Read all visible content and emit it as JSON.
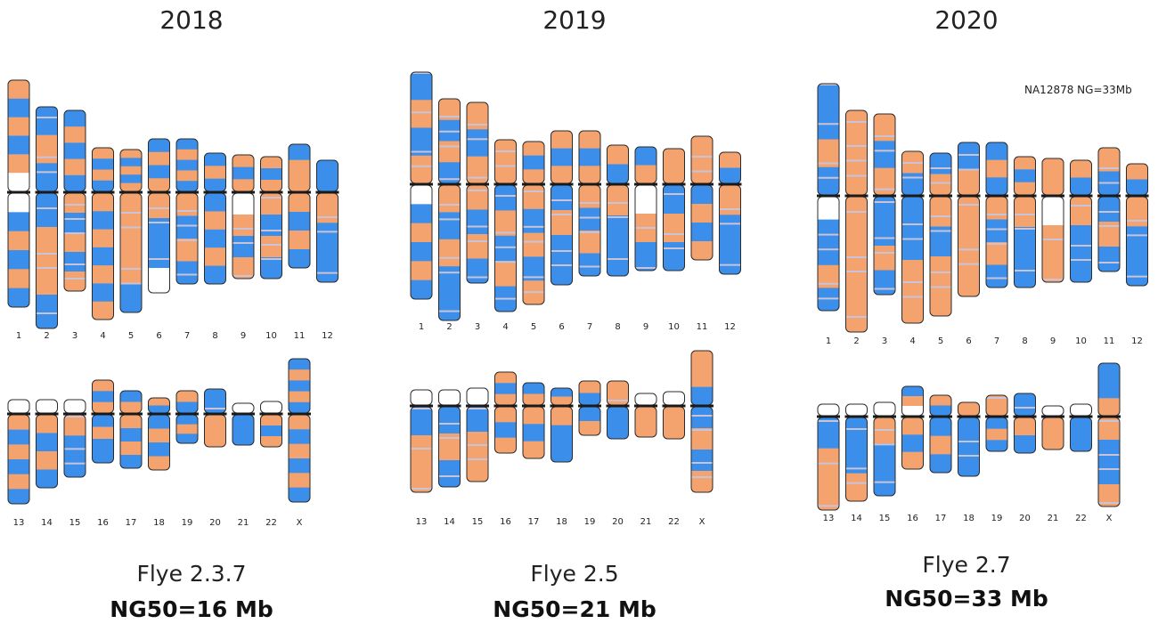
{
  "colors": {
    "orange": "#F5A36E",
    "blue": "#3B8EEA",
    "stripe": "#C9C3D8",
    "outline": "#2b2b2b",
    "centromere": "#1a1a1a"
  },
  "panels": [
    {
      "year": "2018",
      "assembler": "Flye 2.3.7",
      "ng50": "NG50=16 Mb",
      "note": "",
      "chromosomes": [
        {
          "label": "1",
          "p": [
            "O",
            "B",
            "O",
            "B",
            "O",
            "W"
          ],
          "q": [
            "W",
            "B",
            "O",
            "B",
            "O",
            "B"
          ]
        },
        {
          "label": "2",
          "p": [
            "B",
            "O",
            "B"
          ],
          "q": [
            "B",
            "O",
            "O",
            "B"
          ]
        },
        {
          "label": "3",
          "p": [
            "B",
            "O",
            "B",
            "O",
            "B"
          ],
          "q": [
            "O",
            "B",
            "O",
            "B",
            "O"
          ]
        },
        {
          "label": "4",
          "p": [
            "O",
            "B",
            "O",
            "B"
          ],
          "q": [
            "O",
            "B",
            "O",
            "B",
            "O",
            "B",
            "O"
          ]
        },
        {
          "label": "5",
          "p": [
            "O",
            "B",
            "O",
            "B",
            "O"
          ],
          "q": [
            "O",
            "O",
            "O",
            "B"
          ]
        },
        {
          "label": "6",
          "p": [
            "B",
            "O",
            "B",
            "O"
          ],
          "q": [
            "O",
            "B",
            "B",
            "W"
          ]
        },
        {
          "label": "7",
          "p": [
            "B",
            "O",
            "B",
            "O",
            "B"
          ],
          "q": [
            "O",
            "B",
            "O",
            "B"
          ]
        },
        {
          "label": "8",
          "p": [
            "B",
            "O",
            "B"
          ],
          "q": [
            "B",
            "O",
            "B",
            "O",
            "B"
          ]
        },
        {
          "label": "9",
          "p": [
            "O",
            "B",
            "O"
          ],
          "q": [
            "W",
            "O",
            "B",
            "O"
          ]
        },
        {
          "label": "10",
          "p": [
            "O",
            "B",
            "O"
          ],
          "q": [
            "O",
            "B",
            "O",
            "B"
          ]
        },
        {
          "label": "11",
          "p": [
            "B",
            "O",
            "O"
          ],
          "q": [
            "O",
            "B",
            "O",
            "B"
          ]
        },
        {
          "label": "12",
          "p": [
            "B",
            "B"
          ],
          "q": [
            "O",
            "B",
            "B"
          ]
        },
        {
          "label": "13",
          "p": [
            "W"
          ],
          "q": [
            "O",
            "B",
            "O",
            "B",
            "O",
            "B"
          ]
        },
        {
          "label": "14",
          "p": [
            "W"
          ],
          "q": [
            "O",
            "B",
            "O",
            "B"
          ]
        },
        {
          "label": "15",
          "p": [
            "W"
          ],
          "q": [
            "O",
            "B",
            "B"
          ]
        },
        {
          "label": "16",
          "p": [
            "O",
            "B",
            "O"
          ],
          "q": [
            "B",
            "O",
            "B",
            "B"
          ]
        },
        {
          "label": "17",
          "p": [
            "B",
            "O"
          ],
          "q": [
            "O",
            "B",
            "O",
            "B"
          ]
        },
        {
          "label": "18",
          "p": [
            "O",
            "B"
          ],
          "q": [
            "B",
            "O",
            "B",
            "O"
          ]
        },
        {
          "label": "19",
          "p": [
            "O",
            "B"
          ],
          "q": [
            "B",
            "O",
            "B"
          ]
        },
        {
          "label": "20",
          "p": [
            "B"
          ],
          "q": [
            "O",
            "O"
          ]
        },
        {
          "label": "21",
          "p": [
            "W"
          ],
          "q": [
            "B",
            "B"
          ]
        },
        {
          "label": "22",
          "p": [
            "W"
          ],
          "q": [
            "O",
            "B",
            "O"
          ]
        },
        {
          "label": "X",
          "p": [
            "B",
            "O",
            "B",
            "O",
            "B"
          ],
          "q": [
            "O",
            "B",
            "O",
            "B",
            "O",
            "B"
          ]
        }
      ]
    },
    {
      "year": "2019",
      "assembler": "Flye 2.5",
      "ng50": "NG50=21 Mb",
      "note": "",
      "chromosomes": [
        {
          "label": "1",
          "p": [
            "B",
            "O",
            "B",
            "O"
          ],
          "q": [
            "W",
            "B",
            "O",
            "B",
            "O",
            "B"
          ]
        },
        {
          "label": "2",
          "p": [
            "O",
            "B",
            "O",
            "B"
          ],
          "q": [
            "O",
            "B",
            "O",
            "B",
            "B"
          ]
        },
        {
          "label": "3",
          "p": [
            "O",
            "B",
            "O"
          ],
          "q": [
            "O",
            "B",
            "O",
            "B"
          ]
        },
        {
          "label": "4",
          "p": [
            "O",
            "O"
          ],
          "q": [
            "B",
            "O",
            "B",
            "O",
            "B"
          ]
        },
        {
          "label": "5",
          "p": [
            "O",
            "B",
            "O"
          ],
          "q": [
            "O",
            "B",
            "O",
            "B",
            "O"
          ]
        },
        {
          "label": "6",
          "p": [
            "O",
            "B",
            "O"
          ],
          "q": [
            "B",
            "O",
            "B",
            "B"
          ]
        },
        {
          "label": "7",
          "p": [
            "O",
            "B",
            "O"
          ],
          "q": [
            "O",
            "B",
            "O",
            "B"
          ]
        },
        {
          "label": "8",
          "p": [
            "O",
            "B"
          ],
          "q": [
            "O",
            "B",
            "B"
          ]
        },
        {
          "label": "9",
          "p": [
            "B",
            "O"
          ],
          "q": [
            "W",
            "O",
            "B"
          ]
        },
        {
          "label": "10",
          "p": [
            "O",
            "O"
          ],
          "q": [
            "B",
            "O",
            "B"
          ]
        },
        {
          "label": "11",
          "p": [
            "O",
            "O"
          ],
          "q": [
            "B",
            "O",
            "B",
            "O"
          ]
        },
        {
          "label": "12",
          "p": [
            "O",
            "B"
          ],
          "q": [
            "O",
            "B",
            "B"
          ]
        },
        {
          "label": "13",
          "p": [
            "W"
          ],
          "q": [
            "B",
            "O",
            "O"
          ]
        },
        {
          "label": "14",
          "p": [
            "W"
          ],
          "q": [
            "B",
            "O",
            "B"
          ]
        },
        {
          "label": "15",
          "p": [
            "W"
          ],
          "q": [
            "B",
            "O",
            "O"
          ]
        },
        {
          "label": "16",
          "p": [
            "O",
            "B",
            "O"
          ],
          "q": [
            "O",
            "B",
            "O"
          ]
        },
        {
          "label": "17",
          "p": [
            "B",
            "O"
          ],
          "q": [
            "O",
            "B",
            "O"
          ]
        },
        {
          "label": "18",
          "p": [
            "B",
            "O"
          ],
          "q": [
            "O",
            "B",
            "B"
          ]
        },
        {
          "label": "19",
          "p": [
            "O",
            "B"
          ],
          "q": [
            "B",
            "O"
          ]
        },
        {
          "label": "20",
          "p": [
            "O"
          ],
          "q": [
            "B",
            "B"
          ]
        },
        {
          "label": "21",
          "p": [
            "W"
          ],
          "q": [
            "O",
            "O"
          ]
        },
        {
          "label": "22",
          "p": [
            "W"
          ],
          "q": [
            "O",
            "O"
          ]
        },
        {
          "label": "X",
          "p": [
            "O",
            "O",
            "B"
          ],
          "q": [
            "B",
            "O",
            "B",
            "O"
          ]
        }
      ]
    },
    {
      "year": "2020",
      "assembler": "Flye 2.7",
      "ng50": "NG50=33 Mb",
      "note": "NA12878 NG=33Mb",
      "chromosomes": [
        {
          "label": "1",
          "p": [
            "B",
            "B",
            "O",
            "B"
          ],
          "q": [
            "W",
            "B",
            "B",
            "O",
            "B"
          ]
        },
        {
          "label": "2",
          "p": [
            "O",
            "O"
          ],
          "q": [
            "O",
            "O",
            "O",
            "O"
          ]
        },
        {
          "label": "3",
          "p": [
            "O",
            "B",
            "O"
          ],
          "q": [
            "B",
            "B",
            "O",
            "B"
          ]
        },
        {
          "label": "4",
          "p": [
            "O",
            "B"
          ],
          "q": [
            "B",
            "B",
            "O",
            "O"
          ]
        },
        {
          "label": "5",
          "p": [
            "B",
            "O"
          ],
          "q": [
            "O",
            "B",
            "O",
            "O"
          ]
        },
        {
          "label": "6",
          "p": [
            "B",
            "O"
          ],
          "q": [
            "O",
            "O",
            "O"
          ]
        },
        {
          "label": "7",
          "p": [
            "B",
            "O",
            "B"
          ],
          "q": [
            "O",
            "B",
            "O",
            "B"
          ]
        },
        {
          "label": "8",
          "p": [
            "O",
            "B",
            "O"
          ],
          "q": [
            "O",
            "B",
            "B"
          ]
        },
        {
          "label": "9",
          "p": [
            "O",
            "O"
          ],
          "q": [
            "W",
            "O",
            "O"
          ]
        },
        {
          "label": "10",
          "p": [
            "O",
            "B"
          ],
          "q": [
            "O",
            "B",
            "B"
          ]
        },
        {
          "label": "11",
          "p": [
            "O",
            "B"
          ],
          "q": [
            "B",
            "O",
            "B"
          ]
        },
        {
          "label": "12",
          "p": [
            "O",
            "B"
          ],
          "q": [
            "O",
            "B",
            "B"
          ]
        },
        {
          "label": "13",
          "p": [
            "W"
          ],
          "q": [
            "B",
            "O",
            "O"
          ]
        },
        {
          "label": "14",
          "p": [
            "W"
          ],
          "q": [
            "B",
            "B",
            "O"
          ]
        },
        {
          "label": "15",
          "p": [
            "W"
          ],
          "q": [
            "O",
            "B",
            "B"
          ]
        },
        {
          "label": "16",
          "p": [
            "B",
            "O",
            "W"
          ],
          "q": [
            "O",
            "B",
            "O"
          ]
        },
        {
          "label": "17",
          "p": [
            "O",
            "B"
          ],
          "q": [
            "B",
            "O",
            "B"
          ]
        },
        {
          "label": "18",
          "p": [
            "O"
          ],
          "q": [
            "B",
            "B"
          ]
        },
        {
          "label": "19",
          "p": [
            "O"
          ],
          "q": [
            "B",
            "O",
            "B"
          ]
        },
        {
          "label": "20",
          "p": [
            "B"
          ],
          "q": [
            "O",
            "B"
          ]
        },
        {
          "label": "21",
          "p": [
            "W"
          ],
          "q": [
            "O",
            "O"
          ]
        },
        {
          "label": "22",
          "p": [
            "W"
          ],
          "q": [
            "B",
            "B"
          ]
        },
        {
          "label": "X",
          "p": [
            "B",
            "B",
            "O"
          ],
          "q": [
            "O",
            "B",
            "B",
            "O"
          ]
        }
      ]
    }
  ]
}
